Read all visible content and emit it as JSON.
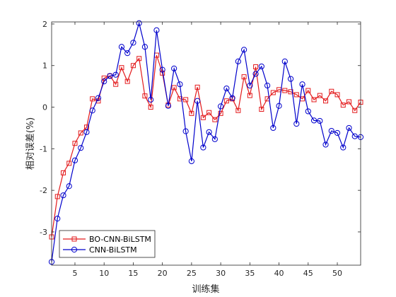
{
  "chart_data": {
    "type": "line",
    "title": "",
    "xlabel": "训练集",
    "ylabel": "相对误差(%)",
    "xlim": [
      1,
      54
    ],
    "ylim": [
      -3.8,
      2.05
    ],
    "xticks": [
      5,
      10,
      15,
      20,
      25,
      30,
      35,
      40,
      45,
      50
    ],
    "yticks": [
      -3,
      -2,
      -1,
      0,
      1,
      2
    ],
    "grid": false,
    "legend_position": "bottom-left",
    "series": [
      {
        "name": "BO-CNN-BiLSTM",
        "color": "#e31a1c",
        "marker": "square",
        "x": [
          1,
          2,
          3,
          4,
          5,
          6,
          7,
          8,
          9,
          10,
          11,
          12,
          13,
          14,
          15,
          16,
          17,
          18,
          19,
          20,
          21,
          22,
          23,
          24,
          25,
          26,
          27,
          28,
          29,
          30,
          31,
          32,
          33,
          34,
          35,
          36,
          37,
          38,
          39,
          40,
          41,
          42,
          43,
          44,
          45,
          46,
          47,
          48,
          49,
          50,
          51,
          52,
          53,
          54
        ],
        "values": [
          -3.12,
          -2.15,
          -1.58,
          -1.35,
          -0.87,
          -0.62,
          -0.48,
          0.2,
          0.15,
          0.7,
          0.75,
          0.55,
          0.95,
          0.62,
          1.0,
          1.17,
          0.27,
          0.0,
          1.25,
          0.82,
          0.05,
          0.47,
          0.2,
          0.18,
          -0.15,
          0.48,
          -0.25,
          -0.13,
          -0.3,
          -0.15,
          0.15,
          0.2,
          -0.08,
          0.73,
          0.28,
          0.97,
          -0.05,
          0.2,
          0.35,
          0.42,
          0.4,
          0.37,
          0.3,
          0.2,
          0.4,
          0.18,
          0.28,
          0.15,
          0.38,
          0.3,
          0.05,
          0.13,
          -0.08,
          0.12
        ]
      },
      {
        "name": "CNN-BiLSTM",
        "color": "#0000cc",
        "marker": "circle",
        "x": [
          1,
          2,
          3,
          4,
          5,
          6,
          7,
          8,
          9,
          10,
          11,
          12,
          13,
          14,
          15,
          16,
          17,
          18,
          19,
          20,
          21,
          22,
          23,
          24,
          25,
          26,
          27,
          28,
          29,
          30,
          31,
          32,
          33,
          34,
          35,
          36,
          37,
          38,
          39,
          40,
          41,
          42,
          43,
          44,
          45,
          46,
          47,
          48,
          49,
          50,
          51,
          52,
          53,
          54
        ],
        "values": [
          -3.72,
          -2.68,
          -2.12,
          -1.9,
          -1.28,
          -0.98,
          -0.6,
          -0.08,
          0.22,
          0.62,
          0.75,
          0.78,
          1.45,
          1.3,
          1.55,
          2.02,
          1.45,
          0.18,
          1.85,
          0.9,
          0.03,
          0.93,
          0.55,
          -0.58,
          -1.3,
          0.15,
          -0.97,
          -0.6,
          -0.77,
          0.02,
          0.45,
          0.22,
          1.1,
          1.38,
          0.52,
          0.8,
          0.98,
          0.52,
          -0.5,
          0.03,
          1.1,
          0.68,
          -0.4,
          0.55,
          -0.1,
          -0.32,
          -0.33,
          -0.9,
          -0.57,
          -0.62,
          -0.97,
          -0.5,
          -0.7,
          -0.72
        ]
      }
    ]
  }
}
